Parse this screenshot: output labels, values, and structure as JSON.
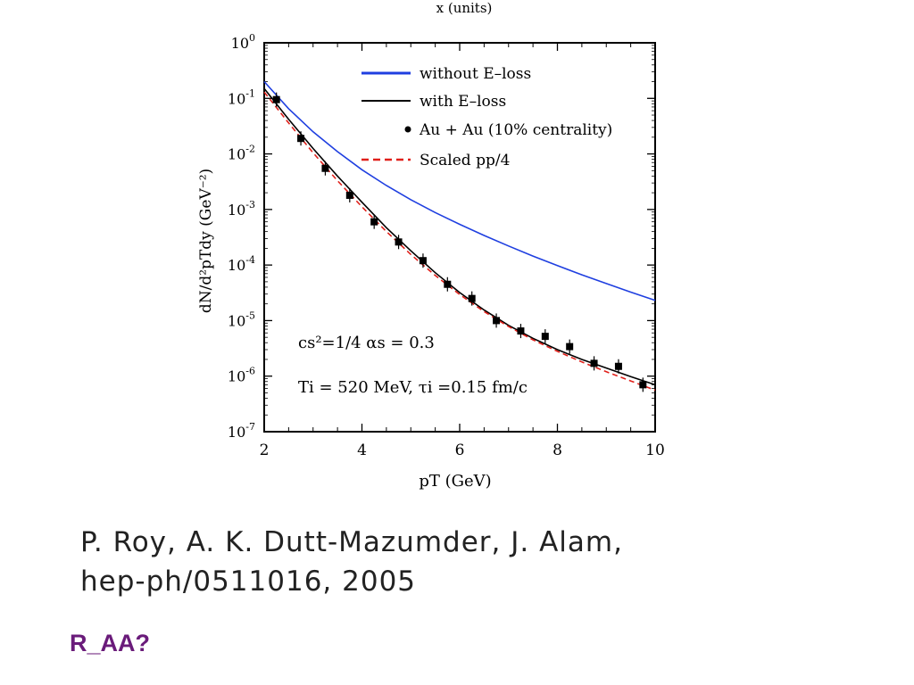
{
  "chart_data": {
    "type": "line",
    "title": "",
    "top_axis_label_fragment": "x (units)",
    "xlabel": "pT (GeV)",
    "ylabel": "dN/d²pTdy (GeV⁻²)",
    "xlim": [
      2,
      10
    ],
    "ylim_exponents": [
      -7,
      0
    ],
    "y_scale": "log",
    "x_ticks": [
      "2",
      "4",
      "6",
      "8",
      "10"
    ],
    "y_ticks": [
      {
        "base": "10",
        "exp": "0"
      },
      {
        "base": "10",
        "exp": "-1"
      },
      {
        "base": "10",
        "exp": "-2"
      },
      {
        "base": "10",
        "exp": "-3"
      },
      {
        "base": "10",
        "exp": "-4"
      },
      {
        "base": "10",
        "exp": "-5"
      },
      {
        "base": "10",
        "exp": "-6"
      },
      {
        "base": "10",
        "exp": "-7"
      }
    ],
    "legend_position": "top-right",
    "legend": [
      {
        "label": "without E–loss",
        "style": "line",
        "color": "#1f3fe0"
      },
      {
        "label": "with E–loss",
        "style": "line",
        "color": "#000000"
      },
      {
        "label": "Au + Au (10% centrality)",
        "style": "marker",
        "color": "#000000"
      },
      {
        "label": "Scaled pp/4",
        "style": "dashed",
        "color": "#e0201a"
      }
    ],
    "annotations": [
      {
        "id": "params",
        "text": "cs²=1/4  αs = 0.3"
      },
      {
        "id": "init",
        "text": "Ti = 520 MeV, τi =0.15 fm/c"
      }
    ],
    "series": [
      {
        "name": "without E–loss",
        "color": "#1f3fe0",
        "x": [
          2,
          2.5,
          3,
          3.5,
          4,
          4.5,
          5,
          5.5,
          6,
          6.5,
          7,
          7.5,
          8,
          8.5,
          9,
          9.5,
          10
        ],
        "y": [
          0.2,
          0.065,
          0.025,
          0.011,
          0.0052,
          0.0027,
          0.0015,
          0.00088,
          0.00054,
          0.00034,
          0.00022,
          0.000145,
          9.75e-05,
          6.67e-05,
          4.64e-05,
          3.26e-05,
          2.31e-05
        ]
      },
      {
        "name": "with E–loss",
        "color": "#000000",
        "x": [
          2,
          2.5,
          3,
          3.5,
          4,
          4.5,
          5,
          5.5,
          6,
          6.5,
          7,
          7.5,
          8,
          8.5,
          9,
          9.5,
          10
        ],
        "y": [
          0.15,
          0.042,
          0.0125,
          0.004,
          0.00135,
          0.00047,
          0.00018,
          7.3e-05,
          3.2e-05,
          1.55e-05,
          8.2e-06,
          4.8e-06,
          3e-06,
          2e-06,
          1.4e-06,
          9.8e-07,
          7e-07
        ]
      },
      {
        "name": "Scaled pp/4",
        "color": "#e0201a",
        "x": [
          2,
          2.5,
          3,
          3.5,
          4,
          4.5,
          5,
          5.5,
          6,
          6.5,
          7,
          7.5,
          8,
          8.5,
          9,
          9.5,
          10
        ],
        "y": [
          0.13,
          0.036,
          0.0105,
          0.0033,
          0.00112,
          0.0004,
          0.000155,
          6.5e-05,
          2.95e-05,
          1.45e-05,
          7.8e-06,
          4.5e-06,
          2.8e-06,
          1.8e-06,
          1.2e-06,
          8.2e-07,
          5.6e-07
        ]
      },
      {
        "name": "Au + Au (10% centrality)",
        "color": "#000000",
        "x": [
          2.25,
          2.75,
          3.25,
          3.75,
          4.25,
          4.75,
          5.25,
          5.75,
          6.25,
          6.75,
          7.25,
          7.75,
          8.25,
          8.75,
          9.25,
          9.75
        ],
        "y": [
          0.095,
          0.019,
          0.0055,
          0.0018,
          0.0006,
          0.00026,
          0.00012,
          4.5e-05,
          2.5e-05,
          1e-05,
          6.5e-06,
          5.2e-06,
          3.4e-06,
          1.7e-06,
          1.5e-06,
          7e-07
        ]
      }
    ]
  },
  "citation": {
    "line1": "P. Roy, A. K. Dutt-Mazumder, J. Alam,",
    "line2": "hep-ph/0511016, 2005"
  },
  "note": "R_AA?"
}
